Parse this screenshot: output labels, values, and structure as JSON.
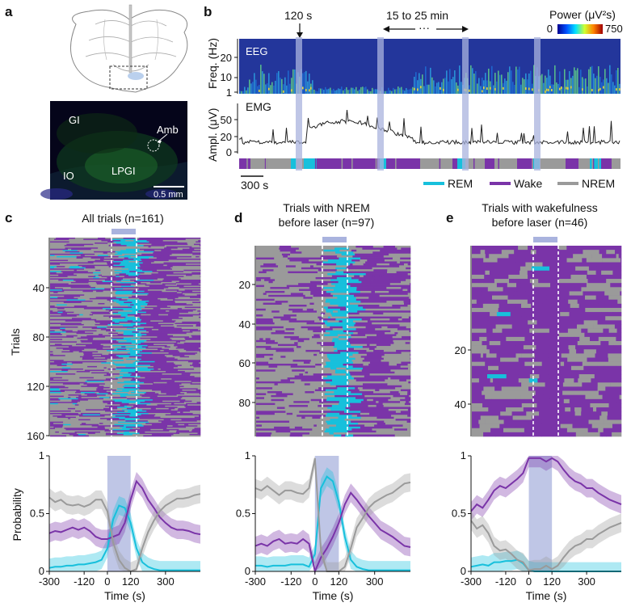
{
  "panels": {
    "a": {
      "label": "a",
      "brain_labels": {
        "gi": "GI",
        "amb": "Amb",
        "io": "IO",
        "lpgi": "LPGI"
      },
      "scale_bar": "0.5 mm"
    },
    "b": {
      "label": "b",
      "annot_120": "120 s",
      "annot_range": "15 to 25 min",
      "annot_dots": "···",
      "colorbar_title": "Power (μV²s)",
      "colorbar_min": "0",
      "colorbar_max": "750",
      "eeg_label": "EEG",
      "emg_label": "EMG",
      "eeg_ylabel": "Freq. (Hz)",
      "eeg_yticks": [
        "20",
        "10",
        "1"
      ],
      "emg_ylabel": "Ampl. (μV)",
      "emg_yticks": [
        "50",
        "20",
        "0"
      ],
      "scale_bar": "300 s",
      "legend": [
        "REM",
        "Wake",
        "NREM"
      ]
    },
    "c": {
      "label": "c",
      "title": "All trials (n=161)",
      "raster_yticks": [
        "40",
        "80",
        "120",
        "160"
      ],
      "raster_ylabel": "Trials"
    },
    "d": {
      "label": "d",
      "title_line1": "Trials with NREM",
      "title_line2": "before laser (n=97)",
      "raster_yticks": [
        "20",
        "40",
        "60",
        "80"
      ]
    },
    "e": {
      "label": "e",
      "title_line1": "Trials with wakefulness",
      "title_line2": "before laser (n=46)",
      "raster_yticks": [
        "20",
        "40"
      ]
    }
  },
  "colors": {
    "rem": "#17c0dc",
    "wake": "#7a34a8",
    "nrem": "#9a9a9a",
    "laser": "#a9b3de"
  },
  "chart_data": [
    {
      "panel": "c",
      "type": "line",
      "xlabel": "Time (s)",
      "ylabel": "Probability",
      "xlim": [
        -300,
        480
      ],
      "ylim": [
        0,
        1
      ],
      "xticks": [
        "-300",
        "-120",
        "0",
        "120",
        "300"
      ],
      "yticks": [
        "0",
        "0.5",
        "1"
      ],
      "laser": [
        0,
        120
      ],
      "x": [
        -300,
        -270,
        -240,
        -210,
        -180,
        -150,
        -120,
        -90,
        -60,
        -30,
        0,
        30,
        60,
        90,
        120,
        150,
        180,
        210,
        240,
        270,
        300,
        330,
        360,
        390,
        420,
        450,
        480
      ],
      "series": [
        {
          "name": "REM",
          "values": [
            0.03,
            0.04,
            0.04,
            0.05,
            0.05,
            0.06,
            0.06,
            0.07,
            0.08,
            0.1,
            0.2,
            0.45,
            0.57,
            0.55,
            0.42,
            0.2,
            0.08,
            0.04,
            0.02,
            0.01,
            0.01,
            0.01,
            0.01,
            0.01,
            0.01,
            0.01,
            0.01
          ]
        },
        {
          "name": "Wake",
          "values": [
            0.33,
            0.35,
            0.34,
            0.36,
            0.38,
            0.36,
            0.38,
            0.35,
            0.3,
            0.28,
            0.28,
            0.3,
            0.32,
            0.42,
            0.62,
            0.78,
            0.72,
            0.62,
            0.55,
            0.47,
            0.42,
            0.38,
            0.36,
            0.36,
            0.35,
            0.33,
            0.32
          ]
        },
        {
          "name": "NREM",
          "values": [
            0.64,
            0.6,
            0.62,
            0.58,
            0.57,
            0.58,
            0.56,
            0.58,
            0.62,
            0.62,
            0.52,
            0.25,
            0.1,
            0.03,
            0.0,
            0.02,
            0.2,
            0.34,
            0.44,
            0.52,
            0.57,
            0.6,
            0.63,
            0.63,
            0.64,
            0.66,
            0.67
          ]
        }
      ]
    },
    {
      "panel": "d",
      "type": "line",
      "xlabel": "Time (s)",
      "ylabel": "",
      "xlim": [
        -300,
        480
      ],
      "ylim": [
        0,
        1
      ],
      "xticks": [
        "-300",
        "-120",
        "0",
        "120",
        "300"
      ],
      "yticks": [
        "0",
        "0.5",
        "1"
      ],
      "laser": [
        0,
        120
      ],
      "x": [
        -300,
        -270,
        -240,
        -210,
        -180,
        -150,
        -120,
        -90,
        -60,
        -30,
        0,
        30,
        60,
        90,
        120,
        150,
        180,
        210,
        240,
        270,
        300,
        330,
        360,
        390,
        420,
        450,
        480
      ],
      "series": [
        {
          "name": "REM",
          "values": [
            0.05,
            0.05,
            0.04,
            0.05,
            0.05,
            0.05,
            0.06,
            0.06,
            0.06,
            0.04,
            0.15,
            0.72,
            0.82,
            0.78,
            0.6,
            0.3,
            0.1,
            0.04,
            0.02,
            0.01,
            0.01,
            0.01,
            0.01,
            0.01,
            0.01,
            0.01,
            0.01
          ]
        },
        {
          "name": "Wake",
          "values": [
            0.22,
            0.24,
            0.22,
            0.26,
            0.28,
            0.24,
            0.25,
            0.24,
            0.28,
            0.24,
            0.0,
            0.12,
            0.2,
            0.3,
            0.42,
            0.58,
            0.68,
            0.62,
            0.55,
            0.48,
            0.42,
            0.36,
            0.33,
            0.3,
            0.26,
            0.22,
            0.21
          ]
        },
        {
          "name": "NREM",
          "values": [
            0.72,
            0.7,
            0.74,
            0.7,
            0.66,
            0.7,
            0.7,
            0.68,
            0.67,
            0.72,
            0.98,
            0.18,
            0.0,
            0.0,
            0.0,
            0.04,
            0.2,
            0.38,
            0.46,
            0.55,
            0.6,
            0.63,
            0.66,
            0.68,
            0.72,
            0.76,
            0.77
          ]
        }
      ]
    },
    {
      "panel": "e",
      "type": "line",
      "xlabel": "Time (s)",
      "ylabel": "",
      "xlim": [
        -300,
        480
      ],
      "ylim": [
        0,
        1
      ],
      "xticks": [
        "-300",
        "-120",
        "0",
        "120",
        "300"
      ],
      "yticks": [
        "0",
        "0.5",
        "1"
      ],
      "laser": [
        0,
        120
      ],
      "x": [
        -300,
        -270,
        -240,
        -210,
        -180,
        -150,
        -120,
        -90,
        -60,
        -30,
        0,
        30,
        60,
        90,
        120,
        150,
        180,
        210,
        240,
        270,
        300,
        330,
        360,
        390,
        420,
        450,
        480
      ],
      "series": [
        {
          "name": "REM",
          "values": [
            0.04,
            0.05,
            0.06,
            0.05,
            0.08,
            0.08,
            0.09,
            0.09,
            0.1,
            0.07,
            0.01,
            0.0,
            0.0,
            0.0,
            0.0,
            0.0,
            0.0,
            0.0,
            0.0,
            0.0,
            0.0,
            0.0,
            0.0,
            0.0,
            0.0,
            0.0,
            0.0
          ]
        },
        {
          "name": "Wake",
          "values": [
            0.52,
            0.58,
            0.55,
            0.62,
            0.7,
            0.74,
            0.72,
            0.76,
            0.8,
            0.85,
            0.98,
            0.98,
            0.98,
            0.95,
            0.98,
            0.95,
            0.88,
            0.82,
            0.78,
            0.76,
            0.72,
            0.72,
            0.68,
            0.65,
            0.62,
            0.6,
            0.58
          ]
        },
        {
          "name": "NREM",
          "values": [
            0.44,
            0.37,
            0.4,
            0.33,
            0.22,
            0.18,
            0.19,
            0.15,
            0.1,
            0.08,
            0.01,
            0.02,
            0.02,
            0.05,
            0.02,
            0.05,
            0.12,
            0.18,
            0.22,
            0.24,
            0.28,
            0.28,
            0.32,
            0.35,
            0.38,
            0.4,
            0.42
          ]
        }
      ]
    }
  ]
}
